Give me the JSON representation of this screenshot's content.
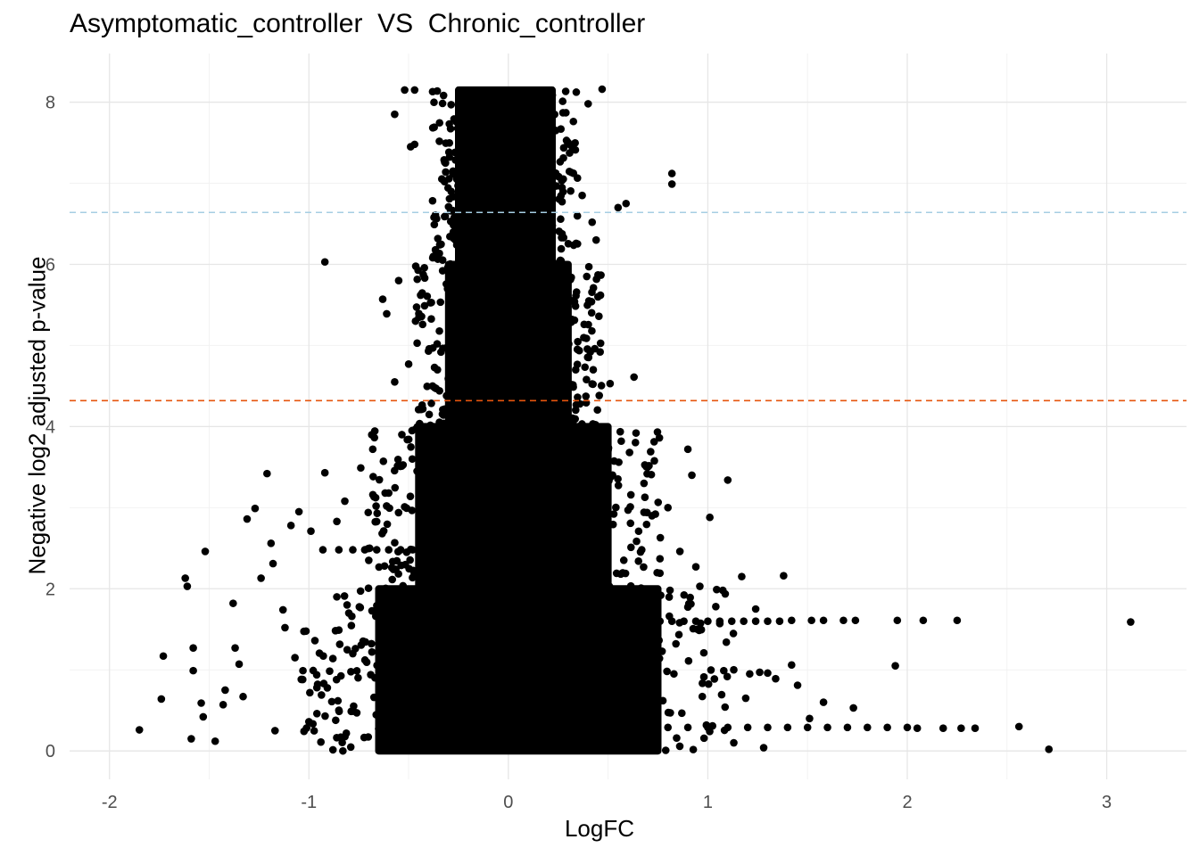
{
  "chart_data": {
    "type": "scatter",
    "title": "Asymptomatic_controller  VS  Chronic_controller",
    "xlabel": "LogFC",
    "ylabel": "Negative log2 adjusted p-value",
    "xlim": [
      -2.2,
      3.4
    ],
    "ylim": [
      -0.35,
      8.6
    ],
    "xticks": [
      -2,
      -1,
      0,
      1,
      2,
      3
    ],
    "xtick_labels": [
      "-2",
      "-1",
      "0",
      "1",
      "2",
      "3"
    ],
    "yticks": [
      0,
      2,
      4,
      6,
      8
    ],
    "ytick_labels": [
      "0",
      "2",
      "4",
      "6",
      "8"
    ],
    "grid": true,
    "point_color": "#000000",
    "reference_lines": [
      {
        "orientation": "horizontal",
        "y": 6.64,
        "color": "#a6cee3",
        "style": "dashed"
      },
      {
        "orientation": "horizontal",
        "y": 4.32,
        "color": "#e6550d",
        "style": "dashed"
      }
    ],
    "dense_core": [
      {
        "y_range": [
          0,
          2
        ],
        "x_range": [
          -0.65,
          0.75
        ]
      },
      {
        "y_range": [
          2,
          4
        ],
        "x_range": [
          -0.45,
          0.5
        ]
      },
      {
        "y_range": [
          4,
          6
        ],
        "x_range": [
          -0.3,
          0.3
        ]
      },
      {
        "y_range": [
          6,
          8.15
        ],
        "x_range": [
          -0.25,
          0.22
        ]
      }
    ],
    "points": [
      [
        -1.85,
        0.26
      ],
      [
        -1.73,
        1.17
      ],
      [
        -1.74,
        0.64
      ],
      [
        -1.62,
        2.13
      ],
      [
        -1.61,
        2.03
      ],
      [
        -1.59,
        0.15
      ],
      [
        -1.58,
        1.27
      ],
      [
        -1.58,
        0.99
      ],
      [
        -1.54,
        0.59
      ],
      [
        -1.52,
        2.46
      ],
      [
        -1.53,
        0.42
      ],
      [
        -1.47,
        0.12
      ],
      [
        -1.43,
        0.57
      ],
      [
        -1.42,
        0.75
      ],
      [
        -1.38,
        1.82
      ],
      [
        -1.37,
        1.27
      ],
      [
        -1.35,
        1.07
      ],
      [
        -1.33,
        0.67
      ],
      [
        -1.31,
        2.86
      ],
      [
        -1.27,
        2.99
      ],
      [
        -1.24,
        2.13
      ],
      [
        -1.21,
        3.42
      ],
      [
        -1.19,
        2.56
      ],
      [
        -1.18,
        2.31
      ],
      [
        -1.17,
        0.25
      ],
      [
        -1.13,
        1.74
      ],
      [
        -1.12,
        1.52
      ],
      [
        -1.09,
        2.78
      ],
      [
        -1.07,
        1.15
      ],
      [
        -1.05,
        2.95
      ],
      [
        -1.03,
        0.99
      ],
      [
        -1.0,
        0.36
      ],
      [
        -0.99,
        2.71
      ],
      [
        -0.97,
        1.36
      ],
      [
        -0.96,
        0.78
      ],
      [
        -0.94,
        0.11
      ],
      [
        -0.93,
        2.48
      ],
      [
        -0.92,
        3.43
      ],
      [
        -0.86,
        1.9
      ],
      [
        -0.86,
        2.83
      ],
      [
        -0.85,
        1.49
      ],
      [
        -0.82,
        3.08
      ],
      [
        -0.8,
        1.7
      ],
      [
        -0.78,
        1.2
      ],
      [
        -0.76,
        0.47
      ],
      [
        -0.74,
        3.49
      ],
      [
        -0.7,
        2.35
      ],
      [
        -0.69,
        0.94
      ],
      [
        -0.68,
        3.72
      ],
      [
        -0.92,
        6.03
      ],
      [
        -0.6,
        3.18
      ],
      [
        -0.63,
        5.57
      ],
      [
        -0.61,
        5.39
      ],
      [
        -0.55,
        5.8
      ],
      [
        -0.57,
        4.55
      ],
      [
        -0.51,
        2.45
      ],
      [
        -0.5,
        4.77
      ],
      [
        -0.52,
        3.01
      ],
      [
        -0.49,
        7.45
      ],
      [
        -0.47,
        7.48
      ],
      [
        -0.57,
        7.85
      ],
      [
        -0.52,
        8.15
      ],
      [
        -0.47,
        8.15
      ],
      [
        -0.38,
        8.13
      ],
      [
        -0.44,
        5.62
      ],
      [
        -0.37,
        4.48
      ],
      [
        -0.35,
        3.74
      ],
      [
        -0.34,
        2.0
      ],
      [
        -0.32,
        7.02
      ],
      [
        -0.3,
        6.71
      ],
      [
        0.47,
        8.16
      ],
      [
        0.4,
        7.98
      ],
      [
        0.37,
        6.85
      ],
      [
        0.42,
        6.52
      ],
      [
        0.44,
        6.3
      ],
      [
        0.38,
        5.26
      ],
      [
        0.46,
        4.92
      ],
      [
        0.51,
        4.53
      ],
      [
        0.55,
        6.7
      ],
      [
        0.59,
        6.75
      ],
      [
        0.63,
        4.61
      ],
      [
        0.5,
        3.71
      ],
      [
        0.64,
        3.92
      ],
      [
        0.6,
        2.97
      ],
      [
        0.68,
        3.3
      ],
      [
        0.72,
        2.9
      ],
      [
        0.76,
        2.37
      ],
      [
        0.8,
        3.0
      ],
      [
        0.83,
        0.95
      ],
      [
        0.86,
        2.46
      ],
      [
        0.9,
        3.72
      ],
      [
        0.92,
        3.4
      ],
      [
        0.94,
        2.27
      ],
      [
        0.96,
        2.03
      ],
      [
        0.98,
        1.21
      ],
      [
        1.01,
        2.88
      ],
      [
        1.04,
        1.78
      ],
      [
        1.06,
        1.57
      ],
      [
        1.08,
        0.99
      ],
      [
        1.1,
        3.34
      ],
      [
        1.13,
        1.0
      ],
      [
        1.17,
        2.15
      ],
      [
        1.19,
        0.65
      ],
      [
        1.21,
        0.95
      ],
      [
        1.24,
        1.75
      ],
      [
        1.26,
        0.97
      ],
      [
        1.28,
        0.04
      ],
      [
        1.3,
        0.96
      ],
      [
        1.34,
        0.89
      ],
      [
        1.38,
        2.16
      ],
      [
        1.42,
        1.06
      ],
      [
        1.45,
        0.81
      ],
      [
        1.51,
        0.4
      ],
      [
        1.58,
        0.6
      ],
      [
        1.73,
        0.53
      ],
      [
        1.94,
        1.05
      ],
      [
        2.71,
        0.02
      ],
      [
        3.12,
        1.59
      ],
      [
        0.82,
        7.12
      ],
      [
        0.82,
        6.99
      ],
      [
        0.7,
        1.6
      ],
      [
        0.76,
        1.6
      ],
      [
        0.82,
        1.6
      ],
      [
        0.88,
        1.6
      ],
      [
        0.94,
        1.6
      ],
      [
        1.0,
        1.6
      ],
      [
        1.06,
        1.6
      ],
      [
        1.12,
        1.6
      ],
      [
        1.18,
        1.6
      ],
      [
        1.24,
        1.6
      ],
      [
        1.3,
        1.6
      ],
      [
        1.36,
        1.6
      ],
      [
        1.42,
        1.61
      ],
      [
        1.52,
        1.61
      ],
      [
        1.58,
        1.61
      ],
      [
        1.68,
        1.61
      ],
      [
        1.74,
        1.61
      ],
      [
        1.95,
        1.61
      ],
      [
        2.08,
        1.61
      ],
      [
        2.25,
        1.61
      ],
      [
        0.8,
        0.29
      ],
      [
        0.9,
        0.29
      ],
      [
        1.0,
        0.29
      ],
      [
        1.1,
        0.29
      ],
      [
        1.2,
        0.29
      ],
      [
        1.3,
        0.29
      ],
      [
        1.4,
        0.29
      ],
      [
        1.5,
        0.29
      ],
      [
        1.6,
        0.29
      ],
      [
        1.7,
        0.29
      ],
      [
        1.8,
        0.29
      ],
      [
        1.9,
        0.29
      ],
      [
        2.0,
        0.29
      ],
      [
        2.05,
        0.28
      ],
      [
        2.18,
        0.28
      ],
      [
        2.27,
        0.28
      ],
      [
        2.34,
        0.28
      ],
      [
        2.56,
        0.3
      ],
      [
        -0.85,
        2.48
      ],
      [
        -0.78,
        2.48
      ],
      [
        -0.72,
        2.48
      ],
      [
        -0.66,
        2.48
      ],
      [
        -0.6,
        2.48
      ],
      [
        -0.54,
        2.48
      ],
      [
        -0.48,
        2.48
      ],
      [
        -0.42,
        2.48
      ]
    ]
  }
}
